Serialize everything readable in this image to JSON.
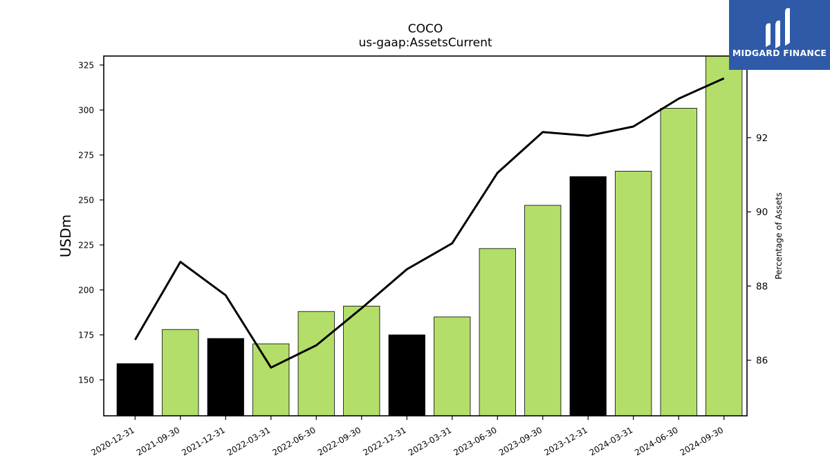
{
  "header": {
    "title": "COCO",
    "subtitle": "us-gaap:AssetsCurrent"
  },
  "logo": {
    "text": "MIDGARD FINANCE",
    "color": "#2e5aa8"
  },
  "chart_data": {
    "type": "bar",
    "categories": [
      "2020-12-31",
      "2021-09-30",
      "2021-12-31",
      "2022-03-31",
      "2022-06-30",
      "2022-09-30",
      "2022-12-31",
      "2023-03-31",
      "2023-06-30",
      "2023-09-30",
      "2023-12-31",
      "2024-03-31",
      "2024-06-30",
      "2024-09-30"
    ],
    "series": [
      {
        "type": "bar",
        "axis": "left",
        "values": [
          159,
          178,
          173,
          170,
          188,
          191,
          175,
          185,
          223,
          247,
          263,
          266,
          301,
          331
        ],
        "colors": [
          "#000000",
          "#b3de69",
          "#000000",
          "#b3de69",
          "#b3de69",
          "#b3de69",
          "#000000",
          "#b3de69",
          "#b3de69",
          "#b3de69",
          "#000000",
          "#b3de69",
          "#b3de69",
          "#b3de69"
        ]
      },
      {
        "type": "line",
        "axis": "right",
        "color": "#000000",
        "values": [
          86.55,
          88.65,
          87.75,
          85.8,
          86.4,
          87.4,
          88.45,
          89.15,
          91.05,
          92.15,
          92.05,
          92.3,
          93.05,
          93.6
        ]
      }
    ],
    "ylabel": "USDm",
    "y2label": "Percentage of Assets",
    "ylim": [
      130,
      330
    ],
    "yticks": [
      150,
      175,
      200,
      225,
      250,
      275,
      300,
      325
    ],
    "y2lim": [
      84.5,
      94.2
    ],
    "y2ticks": [
      86,
      88,
      90,
      92
    ],
    "grid": false,
    "legend": "none"
  }
}
